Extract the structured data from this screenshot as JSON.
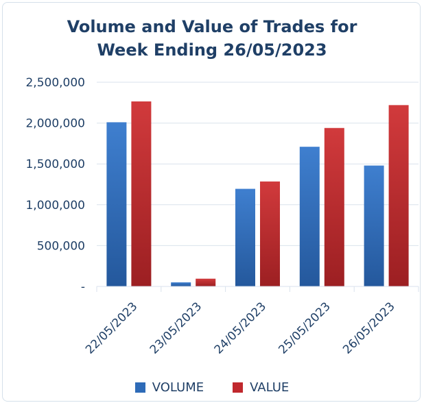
{
  "chart_data": {
    "type": "bar",
    "title_lines": [
      "Volume and Value of Trades for",
      "Week Ending 26/05/2023"
    ],
    "categories": [
      "22/05/2023",
      "23/05/2023",
      "24/05/2023",
      "25/05/2023",
      "26/05/2023"
    ],
    "series": [
      {
        "name": "VOLUME",
        "color": "#2e6bb8",
        "values": [
          2010000,
          50000,
          1195000,
          1710000,
          1480000
        ]
      },
      {
        "name": "VALUE",
        "color": "#c0282d",
        "values": [
          2265000,
          95000,
          1285000,
          1940000,
          2220000
        ]
      }
    ],
    "ylim": [
      0,
      2500000
    ],
    "y_ticks": [
      {
        "value": 0,
        "label": "-"
      },
      {
        "value": 500000,
        "label": "500,000"
      },
      {
        "value": 1000000,
        "label": "1,000,000"
      },
      {
        "value": 1500000,
        "label": "1,500,000"
      },
      {
        "value": 2000000,
        "label": "2,000,000"
      },
      {
        "value": 2500000,
        "label": "2,500,000"
      }
    ],
    "grid": true,
    "legend_position": "bottom"
  }
}
